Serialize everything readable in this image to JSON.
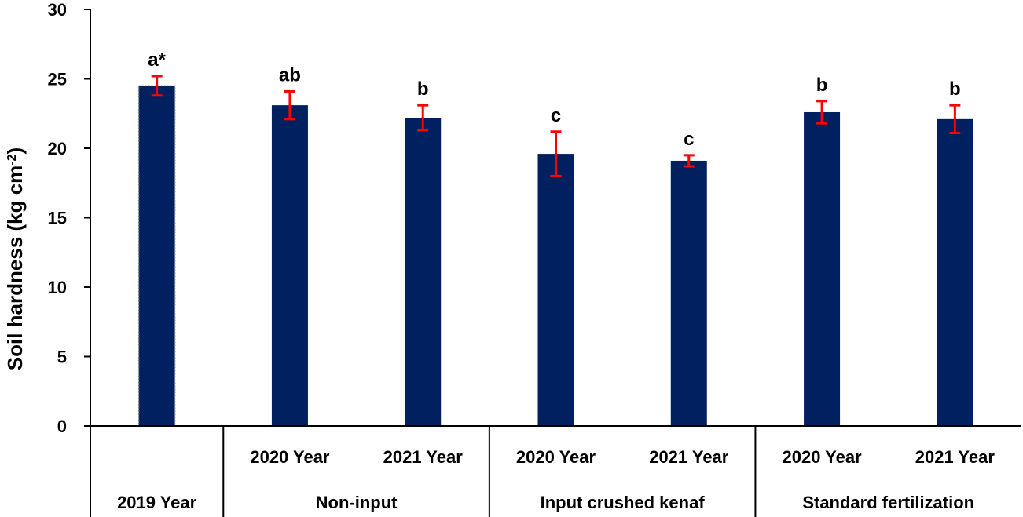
{
  "chart_data": {
    "type": "bar",
    "ylabel": "Soil hardness (kg cm",
    "ylabel_superscript": "-2",
    "ylabel_close": ")",
    "ylim": [
      0,
      30
    ],
    "yticks": [
      "0",
      "5",
      "10",
      "15",
      "20",
      "25",
      "30"
    ],
    "grid": false,
    "bar_color": "#002060",
    "error_bar_color": "#ff0000",
    "groups": [
      {
        "label": "2019 Year",
        "bars": [
          0
        ]
      },
      {
        "label": "Non-input",
        "bars": [
          1,
          2
        ]
      },
      {
        "label": "Input crushed kenaf",
        "bars": [
          3,
          4
        ]
      },
      {
        "label": "Standard fertilization",
        "bars": [
          5,
          6
        ]
      }
    ],
    "bars": [
      {
        "label": "",
        "value": 24.5,
        "error": 0.7,
        "significance": "a*"
      },
      {
        "label": "2020 Year",
        "value": 23.1,
        "error": 1.0,
        "significance": "ab"
      },
      {
        "label": "2021 Year",
        "value": 22.2,
        "error": 0.9,
        "significance": "b"
      },
      {
        "label": "2020 Year",
        "value": 19.6,
        "error": 1.6,
        "significance": "c"
      },
      {
        "label": "2021 Year",
        "value": 19.1,
        "error": 0.4,
        "significance": "c"
      },
      {
        "label": "2020 Year",
        "value": 22.6,
        "error": 0.8,
        "significance": "b"
      },
      {
        "label": "2021 Year",
        "value": 22.1,
        "error": 1.0,
        "significance": "b"
      }
    ]
  }
}
